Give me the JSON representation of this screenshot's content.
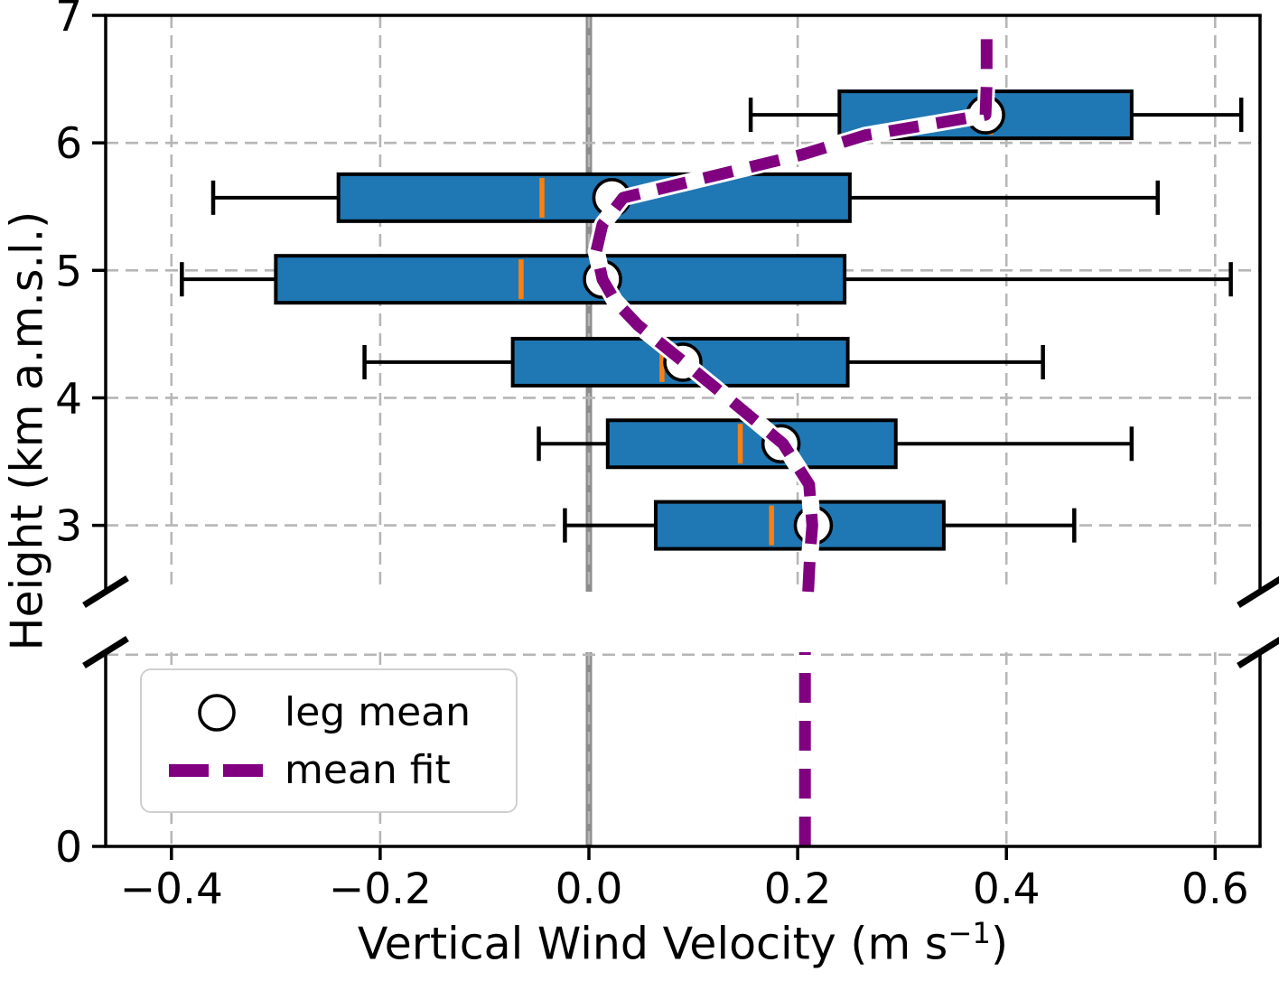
{
  "chart_data": {
    "type": "boxplot",
    "orientation": "horizontal",
    "title": "",
    "xlabel": {
      "pre": "Vertical Wind Velocity (m s",
      "sup": "−1",
      "post": ")"
    },
    "ylabel": "Height (km a.m.s.l.)",
    "xlim": [
      -0.463,
      0.643
    ],
    "x_ticks": {
      "values": [
        -0.4,
        -0.2,
        0.0,
        0.2,
        0.4,
        0.6
      ],
      "labels": [
        "−0.4",
        "−0.2",
        "0.0",
        "0.2",
        "0.4",
        "0.6"
      ]
    },
    "panels": {
      "top": {
        "ylim": [
          2.48,
          7.0
        ],
        "y_ticks": {
          "values": [
            7,
            6,
            5,
            4,
            3
          ],
          "labels": [
            "7",
            "6",
            "5",
            "4",
            "3"
          ]
        },
        "y_gridlines": [
          6,
          5,
          4,
          3
        ]
      },
      "bottom": {
        "ylim": [
          0,
          1.52
        ],
        "y_ticks": {
          "values": [
            0
          ],
          "labels": [
            "0"
          ]
        },
        "y_gridlines": [
          1.5
        ]
      }
    },
    "zero_line_x": 0.0,
    "boxes": [
      {
        "height_km": 6.22,
        "whisker_low": 0.155,
        "q1": 0.24,
        "median": 0.385,
        "mean": 0.38,
        "q3": 0.52,
        "whisker_high": 0.625
      },
      {
        "height_km": 5.57,
        "whisker_low": -0.36,
        "q1": -0.24,
        "median": -0.045,
        "mean": 0.022,
        "q3": 0.25,
        "whisker_high": 0.545
      },
      {
        "height_km": 4.93,
        "whisker_low": -0.39,
        "q1": -0.3,
        "median": -0.065,
        "mean": 0.013,
        "q3": 0.245,
        "whisker_high": 0.615
      },
      {
        "height_km": 4.28,
        "whisker_low": -0.215,
        "q1": -0.073,
        "median": 0.07,
        "mean": 0.09,
        "q3": 0.248,
        "whisker_high": 0.435
      },
      {
        "height_km": 3.64,
        "whisker_low": -0.048,
        "q1": 0.018,
        "median": 0.145,
        "mean": 0.184,
        "q3": 0.294,
        "whisker_high": 0.52
      },
      {
        "height_km": 3.0,
        "whisker_low": -0.023,
        "q1": 0.064,
        "median": 0.175,
        "mean": 0.215,
        "q3": 0.34,
        "whisker_high": 0.465
      }
    ],
    "mean_fit": {
      "bottom_panel_x": 0.207,
      "top_panel_points": [
        [
          0.21,
          2.48
        ],
        [
          0.212,
          2.8
        ],
        [
          0.214,
          3.0
        ],
        [
          0.211,
          3.32
        ],
        [
          0.186,
          3.64
        ],
        [
          0.139,
          3.96
        ],
        [
          0.091,
          4.28
        ],
        [
          0.047,
          4.57
        ],
        [
          0.025,
          4.76
        ],
        [
          0.013,
          4.93
        ],
        [
          0.007,
          5.15
        ],
        [
          0.013,
          5.36
        ],
        [
          0.033,
          5.57
        ],
        [
          0.124,
          5.75
        ],
        [
          0.205,
          5.91
        ],
        [
          0.265,
          6.06
        ],
        [
          0.33,
          6.15
        ],
        [
          0.38,
          6.22
        ],
        [
          0.381,
          6.45
        ],
        [
          0.381,
          6.87
        ]
      ]
    },
    "legend": {
      "items": [
        {
          "label": "leg mean",
          "marker": "open-circle"
        },
        {
          "label": "mean fit",
          "marker": "dashed-line"
        }
      ]
    },
    "colors": {
      "box_fill": "#1f77b4",
      "box_edge": "#000000",
      "median": "#ff7f0e",
      "mean_marker_fill": "#ffffff",
      "mean_marker_edge": "#000000",
      "fit_line": "#800080",
      "fit_casing": "#ffffff",
      "zero_line": "#8c8c8c",
      "gridline": "#b6b6b6",
      "spine": "#000000",
      "legend_border": "#cfcfcf"
    },
    "grid": true,
    "legend_position": "lower-left-panel"
  }
}
